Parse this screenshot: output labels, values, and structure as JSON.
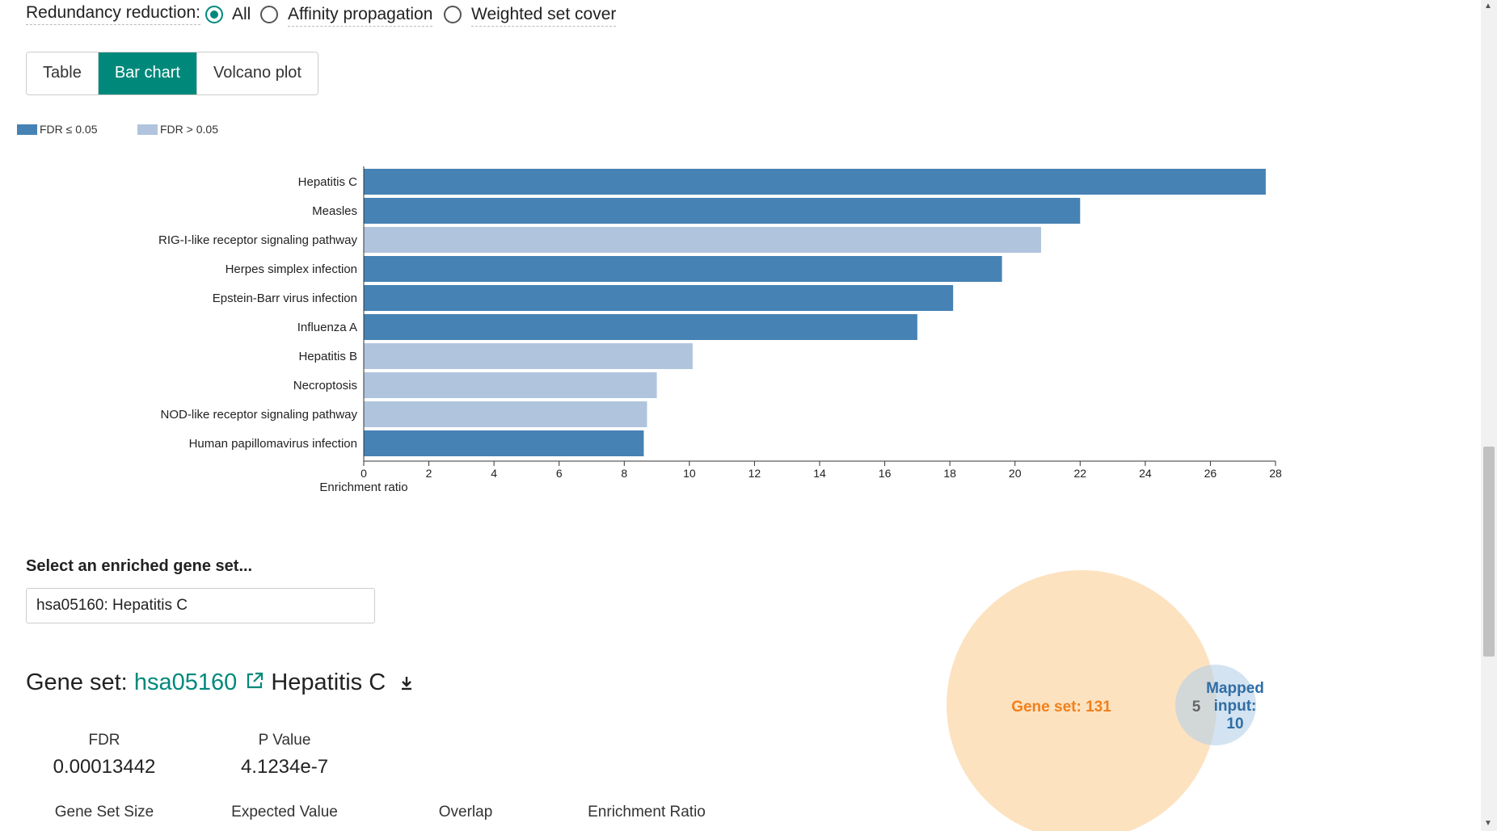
{
  "redundancy": {
    "label": "Redundancy reduction:",
    "options": [
      "All",
      "Affinity propagation",
      "Weighted set cover"
    ],
    "selected": "All"
  },
  "tabs": [
    "Table",
    "Bar chart",
    "Volcano plot"
  ],
  "active_tab": "Bar chart",
  "legend": {
    "significant": "FDR ≤ 0.05",
    "nonsignificant": "FDR > 0.05"
  },
  "colors": {
    "accent": "#00897b",
    "significant": "#4682b4",
    "nonsignificant": "#b0c4de",
    "gene_set_circle": "#fde0bd",
    "gene_set_text": "#f0801e",
    "mapped_circle": "#c6dcee",
    "mapped_text": "#2f6ea5"
  },
  "chart_data": {
    "type": "bar",
    "orientation": "horizontal",
    "categories": [
      "Hepatitis C",
      "Measles",
      "RIG-I-like receptor signaling pathway",
      "Herpes simplex infection",
      "Epstein-Barr virus infection",
      "Influenza A",
      "Hepatitis B",
      "Necroptosis",
      "NOD-like receptor signaling pathway",
      "Human papillomavirus infection"
    ],
    "values": [
      27.7,
      22.0,
      20.8,
      19.6,
      18.1,
      17.0,
      10.1,
      9.0,
      8.7,
      8.6
    ],
    "significant": [
      true,
      true,
      false,
      true,
      true,
      true,
      false,
      false,
      false,
      true
    ],
    "xlabel": "Enrichment ratio",
    "xlim": [
      0,
      28
    ],
    "xticks": [
      0,
      2,
      4,
      6,
      8,
      10,
      12,
      14,
      16,
      18,
      20,
      22,
      24,
      26,
      28
    ]
  },
  "select": {
    "label": "Select an enriched gene set...",
    "value": "hsa05160: Hepatitis C"
  },
  "gene_set": {
    "prefix": "Gene set:",
    "id": "hsa05160",
    "name": "Hepatitis C",
    "stats": [
      {
        "label": "FDR",
        "value": "0.00013442"
      },
      {
        "label": "P Value",
        "value": "4.1234e-7"
      }
    ],
    "more_stat_labels": [
      "Gene Set Size",
      "Expected Value",
      "Overlap",
      "Enrichment Ratio"
    ]
  },
  "venn": {
    "gene_set_label": "Gene set: 131",
    "overlap": "5",
    "mapped_label_lines": [
      "Mapped",
      "input:",
      "10"
    ]
  }
}
